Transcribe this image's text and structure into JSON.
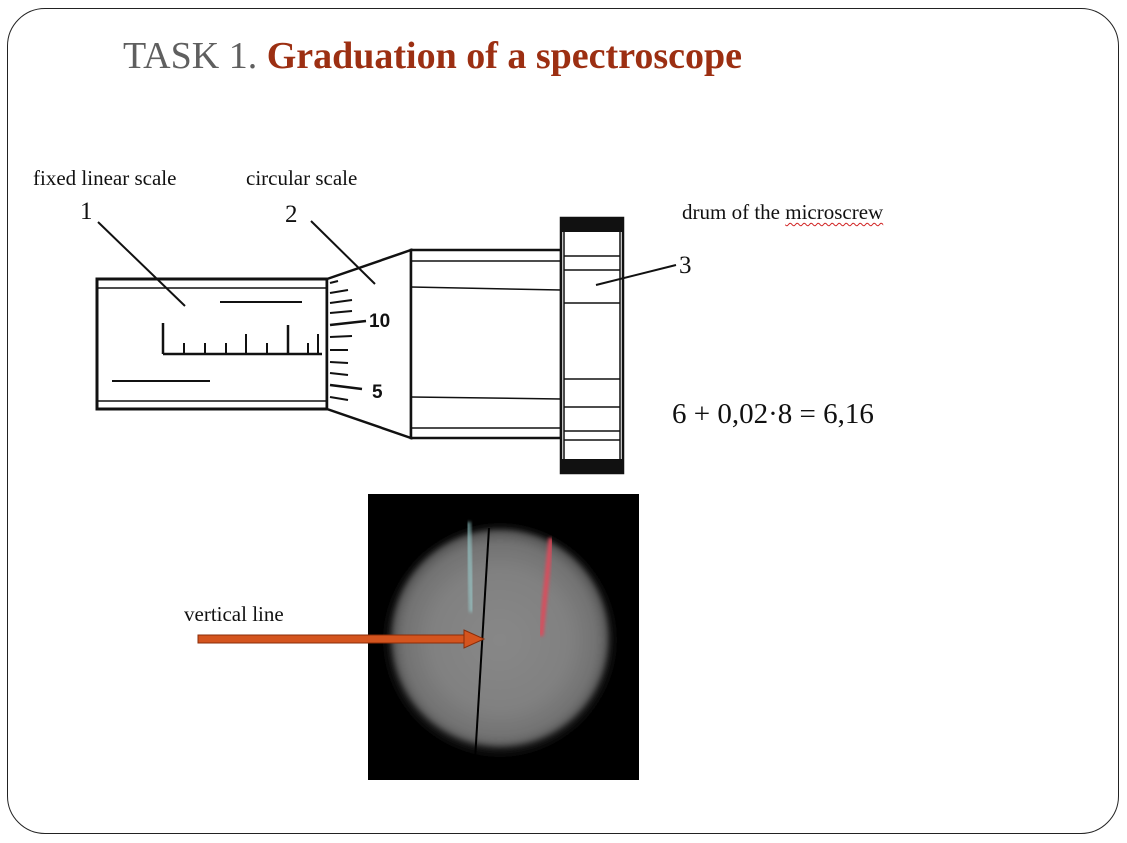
{
  "title": {
    "prefix": "TASK 1.",
    "main": "Graduation of a spectroscope"
  },
  "labels": {
    "fixed_scale": "fixed linear scale",
    "circular_scale": "circular scale",
    "drum": "drum of the",
    "drum_word": "microscrew",
    "vertical_line": "vertical line"
  },
  "callouts": {
    "one": "1",
    "two": "2",
    "three": "3"
  },
  "drum_ticks": {
    "ten": "10",
    "five": "5"
  },
  "formula": "6 + 0,02·8 = 6,16",
  "colors": {
    "title_main": "#9c2f12",
    "title_prefix": "#5f5f5f",
    "arrow": "#d4541e",
    "photo_bg": "#000000",
    "red_line": "#e0485a"
  }
}
